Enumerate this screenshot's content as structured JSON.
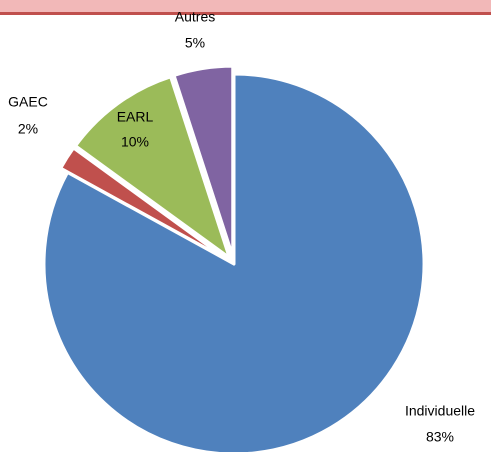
{
  "chart_data": {
    "type": "pie",
    "categories": [
      "Individuelle",
      "GAEC",
      "EARL",
      "Autres"
    ],
    "values": [
      83,
      2,
      10,
      5
    ],
    "value_labels": [
      "83%",
      "2%",
      "10%",
      "5%"
    ],
    "colors": [
      "#4f81bd",
      "#c0504d",
      "#9bbb59",
      "#8064a2"
    ]
  }
}
